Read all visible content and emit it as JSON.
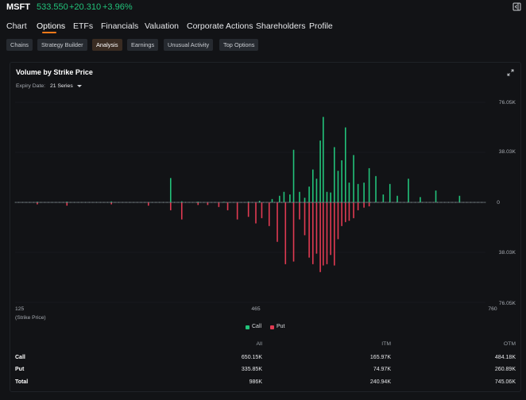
{
  "header": {
    "ticker": "MSFT",
    "price": "533.550",
    "change": "+20.310",
    "change_pct": "+3.96%",
    "up_color": "#22c27a",
    "exit_icon": "exit-icon"
  },
  "nav": {
    "items": [
      {
        "label": "Chart"
      },
      {
        "label": "Options"
      },
      {
        "label": "ETFs"
      },
      {
        "label": "Financials"
      },
      {
        "label": "Valuation"
      },
      {
        "label": "Corporate Actions"
      },
      {
        "label": "Shareholders"
      },
      {
        "label": "Profile"
      }
    ],
    "active": "Options",
    "accent": "#ff7a1a"
  },
  "subtabs": {
    "items": [
      {
        "label": "Chains"
      },
      {
        "label": "Strategy Builder"
      },
      {
        "label": "Analysis"
      },
      {
        "label": "Earnings"
      },
      {
        "label": "Unusual Activity"
      },
      {
        "label": "Top Options"
      }
    ],
    "active": "Analysis"
  },
  "panel": {
    "title": "Volume by Strike Price",
    "expiry_label": "Expiry Date:",
    "expiry_value": "21 Series",
    "expand_icon": "expand-icon"
  },
  "chart_data": {
    "type": "bar",
    "title": "Volume by Strike Price",
    "xlabel": "(Strike Price)",
    "x_ticks": [
      "125",
      "465",
      "760"
    ],
    "xlim": [
      125,
      760
    ],
    "y_ticks_top": [
      "76.05K",
      "38.03K",
      "0"
    ],
    "y_ticks_bottom": [
      "38.03K",
      "76.05K"
    ],
    "ylim": [
      -76050,
      76050
    ],
    "legend": [
      {
        "name": "Call",
        "color": "#22c27a"
      },
      {
        "name": "Put",
        "color": "#e03a52"
      }
    ],
    "series": [
      {
        "name": "Call",
        "strikes": [
          155,
          195,
          255,
          335,
          350,
          372,
          407,
          440,
          455,
          472,
          482,
          488,
          496,
          501,
          509,
          516,
          522,
          527,
          532,
          537,
          541,
          546,
          551,
          556,
          561,
          566,
          571,
          576,
          582,
          588,
          596,
          603,
          612,
          622,
          631,
          641,
          656,
          672,
          693,
          725
        ],
        "values": [
          500,
          600,
          700,
          18500,
          800,
          600,
          500,
          700,
          1200,
          2500,
          5000,
          8000,
          6000,
          40000,
          8000,
          3500,
          12000,
          25000,
          18000,
          47000,
          65000,
          8000,
          7500,
          42000,
          24000,
          32000,
          57000,
          15000,
          36000,
          14000,
          15000,
          26000,
          20000,
          6000,
          14000,
          5000,
          18000,
          4000,
          9000,
          5000
        ]
      },
      {
        "name": "Put",
        "strikes": [
          155,
          195,
          255,
          305,
          335,
          350,
          372,
          385,
          400,
          412,
          425,
          440,
          450,
          458,
          468,
          479,
          490,
          501,
          509,
          516,
          522,
          527,
          532,
          537,
          541,
          546,
          551,
          556,
          561,
          566,
          571,
          576,
          582,
          588,
          596,
          603
        ],
        "values": [
          1500,
          2500,
          1500,
          2500,
          6000,
          13000,
          2000,
          2000,
          3500,
          6000,
          13000,
          11000,
          16000,
          12000,
          18000,
          30000,
          47000,
          45000,
          13000,
          25000,
          42000,
          47000,
          39000,
          53000,
          48000,
          47000,
          40000,
          48000,
          28000,
          18000,
          15000,
          14000,
          12000,
          6000,
          4000,
          3000
        ]
      }
    ]
  },
  "table": {
    "headers": [
      "All",
      "ITM",
      "OTM"
    ],
    "rows": [
      {
        "label": "Call",
        "all": "650.15K",
        "itm": "165.97K",
        "otm": "484.18K"
      },
      {
        "label": "Put",
        "all": "335.85K",
        "itm": "74.97K",
        "otm": "260.89K"
      },
      {
        "label": "Total",
        "all": "986K",
        "itm": "240.94K",
        "otm": "745.06K"
      }
    ]
  }
}
